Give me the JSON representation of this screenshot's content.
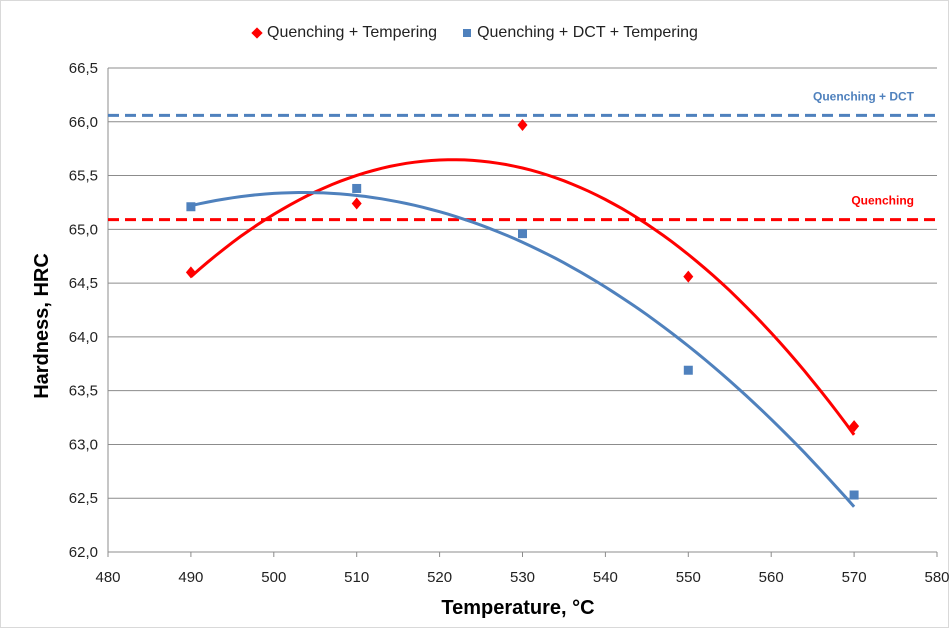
{
  "chart_data": {
    "type": "scatter",
    "xlabel": "Temperature, °C",
    "ylabel": "Hardness, HRC",
    "xlim": [
      480,
      580
    ],
    "ylim": [
      62.0,
      66.5
    ],
    "x_ticks": [
      "480",
      "490",
      "500",
      "510",
      "520",
      "530",
      "540",
      "550",
      "560",
      "570",
      "580"
    ],
    "y_ticks": [
      "62,0",
      "62,5",
      "63,0",
      "63,5",
      "64,0",
      "64,5",
      "65,0",
      "65,5",
      "66,0",
      "66,5"
    ],
    "grid": "horizontal",
    "legend_position": "top-center",
    "series": [
      {
        "name": "Quenching + Tempering",
        "color": "#ff0000",
        "marker": "diamond",
        "x": [
          490,
          510,
          530,
          550,
          570
        ],
        "values": [
          64.6,
          65.24,
          65.97,
          64.56,
          63.17
        ],
        "trend": {
          "type": "polynomial-2",
          "x_range": [
            490,
            570
          ],
          "y": [
            64.56,
            65.51,
            65.57,
            64.73,
            63.09
          ]
        }
      },
      {
        "name": "Quenching + DCT + Tempering",
        "color": "#4f81bd",
        "marker": "square",
        "x": [
          490,
          510,
          530,
          550,
          570
        ],
        "values": [
          65.21,
          65.38,
          64.96,
          63.69,
          62.53
        ],
        "trend": {
          "type": "polynomial-2",
          "x_range": [
            490,
            570
          ],
          "y": [
            65.22,
            65.28,
            64.88,
            63.88,
            62.42
          ]
        }
      }
    ],
    "reference_lines": [
      {
        "label": "Quenching + DCT",
        "y": 66.06,
        "color": "#4f81bd",
        "style": "dashed"
      },
      {
        "label": "Quenching",
        "y": 65.09,
        "color": "#ff0000",
        "style": "dashed"
      }
    ]
  }
}
